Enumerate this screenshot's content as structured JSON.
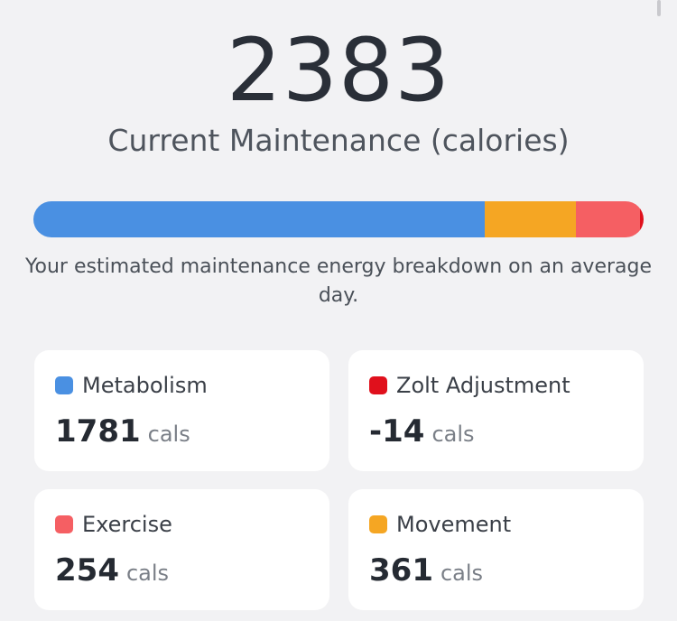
{
  "summary": {
    "total": "2383",
    "title": "Current Maintenance (calories)",
    "description": "Your estimated maintenance energy breakdown on an average day."
  },
  "breakdown_bar": {
    "segments": [
      {
        "label": "Metabolism",
        "value": 1781,
        "color": "#4a90e2"
      },
      {
        "label": "Movement",
        "value": 361,
        "color": "#f5a623"
      },
      {
        "label": "Exercise",
        "value": 254,
        "color": "#f55f63"
      },
      {
        "label": "Zolt Adjustment",
        "value": -14,
        "color": "#e0101c"
      }
    ]
  },
  "cards": [
    {
      "label": "Metabolism",
      "value": "1781",
      "unit": "cals",
      "color": "#4a90e2"
    },
    {
      "label": "Zolt Adjustment",
      "value": "-14",
      "unit": "cals",
      "color": "#e0101c"
    },
    {
      "label": "Exercise",
      "value": "254",
      "unit": "cals",
      "color": "#f55f63"
    },
    {
      "label": "Movement",
      "value": "361",
      "unit": "cals",
      "color": "#f5a623"
    }
  ]
}
